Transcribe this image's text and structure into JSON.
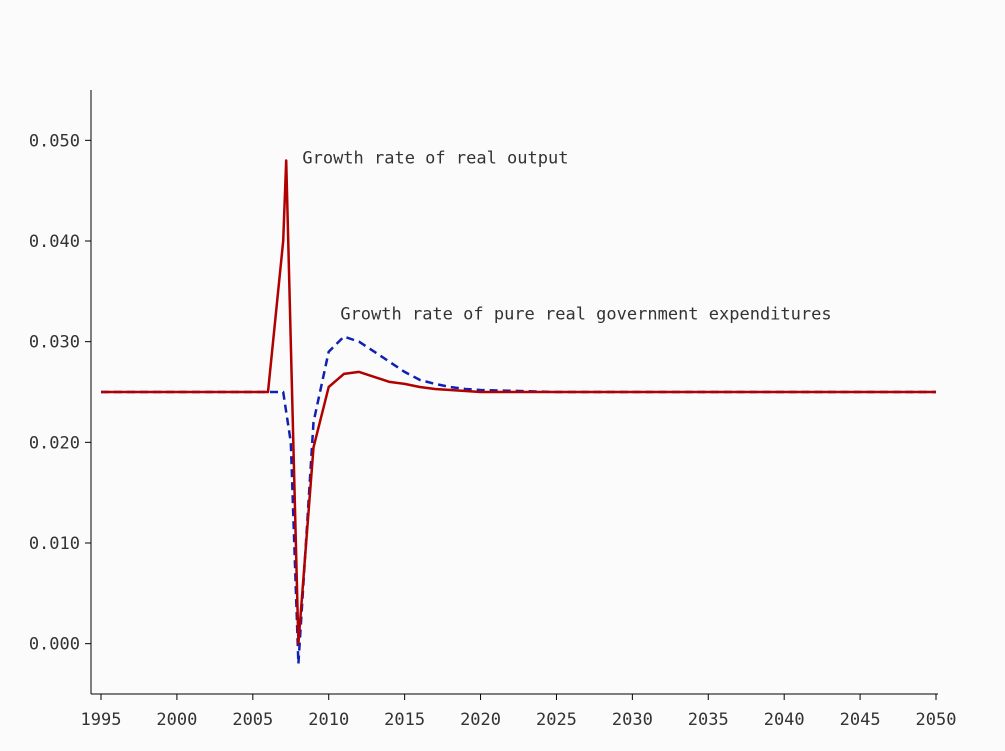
{
  "chart_data": {
    "type": "line",
    "title": "",
    "xlabel": "",
    "ylabel": "",
    "xlim": [
      1995,
      2050
    ],
    "ylim": [
      -0.005,
      0.055
    ],
    "grid": false,
    "legend": "none",
    "x_ticks": [
      1995,
      2000,
      2005,
      2010,
      2015,
      2020,
      2025,
      2030,
      2035,
      2040,
      2045,
      2050
    ],
    "x_tick_labels": [
      "1995",
      "2000",
      "2005",
      "2010",
      "2015",
      "2020",
      "2025",
      "2030",
      "2035",
      "2040",
      "2045",
      "2050"
    ],
    "y_ticks": [
      0.0,
      0.01,
      0.02,
      0.03,
      0.04,
      0.05
    ],
    "y_tick_labels": [
      "0.000",
      "0.010",
      "0.020",
      "0.030",
      "0.040",
      "0.050"
    ],
    "annotations": [
      {
        "text": "Growth rate of real output",
        "series": 0,
        "x": 2008.0,
        "y": 0.048
      },
      {
        "text": "Growth rate of pure real government expenditures",
        "series": 1,
        "x": 2010.5,
        "y": 0.0325
      }
    ],
    "series": [
      {
        "color": "#b00000",
        "style": "solid",
        "x": [
          1995,
          2000,
          2005,
          2006,
          2007,
          2007.2,
          2008,
          2009,
          2010,
          2011,
          2012,
          2013,
          2014,
          2015,
          2016,
          2017,
          2018,
          2019,
          2020,
          2025,
          2030,
          2035,
          2040,
          2045,
          2050
        ],
        "y": [
          0.025,
          0.025,
          0.025,
          0.025,
          0.04,
          0.048,
          0.0,
          0.0195,
          0.0255,
          0.0268,
          0.027,
          0.0265,
          0.026,
          0.0258,
          0.0255,
          0.0253,
          0.0252,
          0.0251,
          0.025,
          0.025,
          0.025,
          0.025,
          0.025,
          0.025,
          0.025
        ]
      },
      {
        "color": "#1020b0",
        "style": "dashed",
        "x": [
          1995,
          2000,
          2005,
          2006,
          2007,
          2007.5,
          2008,
          2009,
          2010,
          2011,
          2012,
          2013,
          2014,
          2015,
          2016,
          2017,
          2018,
          2019,
          2020,
          2025,
          2030,
          2035,
          2040,
          2045,
          2050
        ],
        "y": [
          0.025,
          0.025,
          0.025,
          0.025,
          0.025,
          0.02,
          -0.002,
          0.022,
          0.029,
          0.0305,
          0.03,
          0.029,
          0.028,
          0.027,
          0.0262,
          0.0258,
          0.0255,
          0.0253,
          0.0252,
          0.025,
          0.025,
          0.025,
          0.025,
          0.025,
          0.025
        ]
      }
    ]
  }
}
